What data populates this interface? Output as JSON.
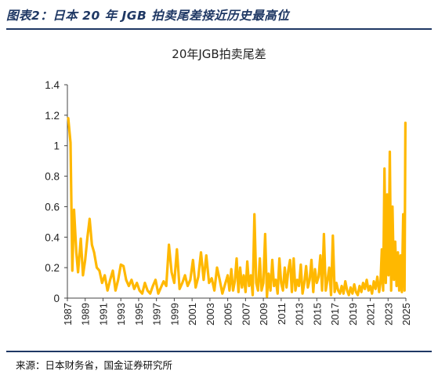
{
  "header": {
    "title": "图表2：日本 20 年 JGB 拍卖尾差接近历史最高位"
  },
  "source": {
    "text": "来源：日本财务省，国金证券研究所"
  },
  "colors": {
    "line": "#FFB800",
    "accent": "#1f3864"
  },
  "chart_data": {
    "type": "line",
    "title": "20年JGB拍卖尾差",
    "xlabel": "",
    "ylabel": "",
    "xlim": [
      1987,
      2025
    ],
    "ylim": [
      0,
      1.4
    ],
    "y_ticks": [
      "0",
      "0.2",
      "0.4",
      "0.6",
      "0.8",
      "1",
      "1.2",
      "1.4"
    ],
    "x_ticks": [
      "1987",
      "1989",
      "1991",
      "1993",
      "1995",
      "1997",
      "1999",
      "2001",
      "2003",
      "2005",
      "2007",
      "2009",
      "2011",
      "2013",
      "2015",
      "2017",
      "2019",
      "2021",
      "2023",
      "2025"
    ],
    "grid": false,
    "legend": "none",
    "series": [
      {
        "x": [
          1987.1,
          1987.35,
          1987.55,
          1987.75,
          1988.0,
          1988.2,
          1988.5,
          1988.75,
          1989.0,
          1989.25,
          1989.5,
          1989.75,
          1990.0,
          1990.3,
          1990.6,
          1990.9,
          1991.2,
          1991.5,
          1991.8,
          1992.1,
          1992.4,
          1992.7,
          1993.0,
          1993.3,
          1993.6,
          1993.9,
          1994.2,
          1994.5,
          1994.8,
          1995.1,
          1995.4,
          1995.7,
          1996.0,
          1996.3,
          1996.6,
          1996.9,
          1997.2,
          1997.5,
          1997.8,
          1998.1,
          1998.4,
          1998.7,
          1999.0,
          1999.3,
          1999.6,
          1999.9,
          2000.2,
          2000.5,
          2000.8,
          2001.1,
          2001.4,
          2001.7,
          2002.0,
          2002.3,
          2002.6,
          2002.9,
          2003.2,
          2003.5,
          2003.8,
          2004.1,
          2004.4,
          2004.7,
          2005.0,
          2005.2,
          2005.4,
          2005.6,
          2005.8,
          2006.0,
          2006.2,
          2006.4,
          2006.6,
          2006.8,
          2007.0,
          2007.2,
          2007.4,
          2007.6,
          2007.8,
          2008.0,
          2008.2,
          2008.4,
          2008.6,
          2008.8,
          2009.0,
          2009.2,
          2009.4,
          2009.6,
          2009.8,
          2010.0,
          2010.2,
          2010.4,
          2010.6,
          2010.8,
          2011.0,
          2011.2,
          2011.4,
          2011.6,
          2011.8,
          2012.0,
          2012.2,
          2012.4,
          2012.6,
          2012.8,
          2013.0,
          2013.2,
          2013.4,
          2013.6,
          2013.8,
          2014.0,
          2014.2,
          2014.4,
          2014.6,
          2014.8,
          2015.0,
          2015.2,
          2015.4,
          2015.6,
          2015.8,
          2016.0,
          2016.2,
          2016.4,
          2016.6,
          2016.8,
          2017.0,
          2017.2,
          2017.4,
          2017.6,
          2017.8,
          2018.0,
          2018.2,
          2018.4,
          2018.6,
          2018.8,
          2019.0,
          2019.2,
          2019.4,
          2019.6,
          2019.8,
          2020.0,
          2020.2,
          2020.4,
          2020.6,
          2020.8,
          2021.0,
          2021.2,
          2021.4,
          2021.6,
          2021.8,
          2022.0,
          2022.15,
          2022.3,
          2022.45,
          2022.6,
          2022.75,
          2022.9,
          2023.05,
          2023.2,
          2023.35,
          2023.5,
          2023.65,
          2023.8,
          2023.95,
          2024.1,
          2024.25,
          2024.4,
          2024.55,
          2024.7,
          2024.85,
          2024.95
        ],
        "values": [
          1.18,
          1.02,
          0.18,
          0.58,
          0.3,
          0.17,
          0.39,
          0.15,
          0.25,
          0.4,
          0.52,
          0.35,
          0.3,
          0.2,
          0.18,
          0.1,
          0.15,
          0.05,
          0.12,
          0.18,
          0.05,
          0.12,
          0.22,
          0.21,
          0.12,
          0.08,
          0.12,
          0.06,
          0.1,
          0.05,
          0.03,
          0.1,
          0.05,
          0.03,
          0.08,
          0.12,
          0.03,
          0.07,
          0.11,
          0.08,
          0.35,
          0.17,
          0.1,
          0.32,
          0.06,
          0.1,
          0.15,
          0.08,
          0.12,
          0.25,
          0.07,
          0.14,
          0.3,
          0.12,
          0.28,
          0.1,
          0.13,
          0.05,
          0.2,
          0.12,
          0.03,
          0.09,
          0.15,
          0.05,
          0.19,
          0.05,
          0.11,
          0.26,
          0.04,
          0.2,
          0.07,
          0.15,
          0.04,
          0.24,
          0.08,
          0.15,
          0.02,
          0.55,
          0.1,
          0.05,
          0.26,
          0.05,
          0.1,
          0.42,
          0.01,
          0.16,
          0.05,
          0.25,
          0.08,
          0.12,
          0.03,
          0.26,
          0.1,
          0.05,
          0.2,
          0.07,
          0.18,
          0.25,
          0.04,
          0.26,
          0.05,
          0.12,
          0.08,
          0.22,
          0.03,
          0.1,
          0.21,
          0.07,
          0.12,
          0.25,
          0.04,
          0.19,
          0.1,
          0.14,
          0.28,
          0.05,
          0.42,
          0.05,
          0.12,
          0.2,
          0.02,
          0.41,
          0.04,
          0.1,
          0.05,
          0.03,
          0.08,
          0.03,
          0.11,
          0.05,
          0.02,
          0.07,
          0.03,
          0.09,
          0.04,
          0.02,
          0.08,
          0.04,
          0.1,
          0.06,
          0.12,
          0.05,
          0.08,
          0.03,
          0.11,
          0.06,
          0.14,
          0.04,
          0.1,
          0.32,
          0.05,
          0.85,
          0.1,
          0.68,
          0.15,
          0.96,
          0.05,
          0.6,
          0.12,
          0.37,
          0.08,
          0.3,
          0.05,
          0.28,
          0.04,
          0.55,
          0.05,
          1.15
        ]
      }
    ]
  }
}
